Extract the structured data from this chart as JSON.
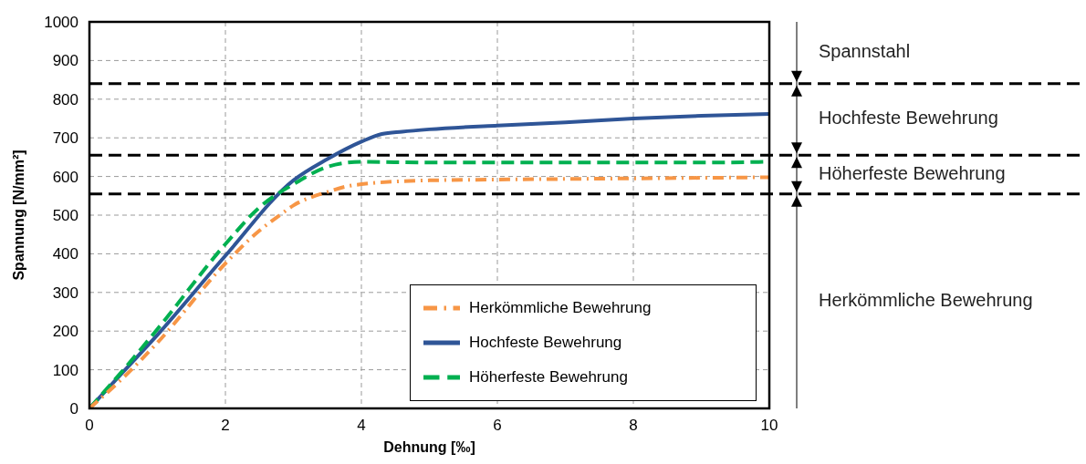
{
  "chart_data": {
    "type": "line",
    "xlabel": "Dehnung [‰]",
    "ylabel": "Spannung [N/mm²]",
    "xlim": [
      0,
      10
    ],
    "xticks": [
      0,
      2,
      4,
      6,
      8,
      10
    ],
    "ylim": [
      0,
      1000
    ],
    "yticks": [
      0,
      100,
      200,
      300,
      400,
      500,
      600,
      700,
      800,
      900,
      1000
    ],
    "grid": true,
    "legend": "bottom right",
    "marker": "none",
    "series": [
      {
        "name": "Hochfeste Bewehrung",
        "color": "#2f5597",
        "line_style": "solid",
        "x": [
          0,
          0.5,
          1,
          2,
          3,
          3.5,
          4,
          4.3,
          4.6,
          5,
          6,
          7,
          8,
          9,
          10
        ],
        "values": [
          0,
          95,
          190,
          395,
          590,
          645,
          690,
          710,
          716,
          722,
          732,
          740,
          750,
          757,
          762
        ]
      },
      {
        "name": "Höherfeste Bewehrung",
        "color": "#00b050",
        "line_style": "dashed",
        "x": [
          0,
          0.5,
          1,
          2,
          2.5,
          3,
          3.5,
          3.8,
          4,
          5,
          6,
          7,
          8,
          9,
          10
        ],
        "values": [
          0,
          100,
          205,
          425,
          520,
          580,
          625,
          636,
          638,
          636,
          636,
          636,
          636,
          636,
          638
        ]
      },
      {
        "name": "Herkömmliche Bewehrung",
        "color": "#f79646",
        "line_style": "dashdot",
        "x": [
          0,
          0.5,
          1,
          2,
          2.5,
          2.8,
          3,
          3.5,
          3.8,
          4,
          5,
          6,
          8,
          10
        ],
        "values": [
          0,
          80,
          170,
          375,
          460,
          500,
          525,
          560,
          575,
          580,
          590,
          592,
          595,
          598
        ]
      }
    ],
    "ref_lines": [
      {
        "axis": "y",
        "value": 840,
        "color": "#000000",
        "line_style": "dashed"
      },
      {
        "axis": "y",
        "value": 655,
        "color": "#000000",
        "line_style": "dashed"
      },
      {
        "axis": "y",
        "value": 555,
        "color": "#000000",
        "line_style": "dashed"
      }
    ],
    "annotations": [
      "Spannstahl",
      "Hochfeste Bewehrung",
      "Höherfeste Bewehrung",
      "Herkömmliche Bewehrung"
    ]
  }
}
